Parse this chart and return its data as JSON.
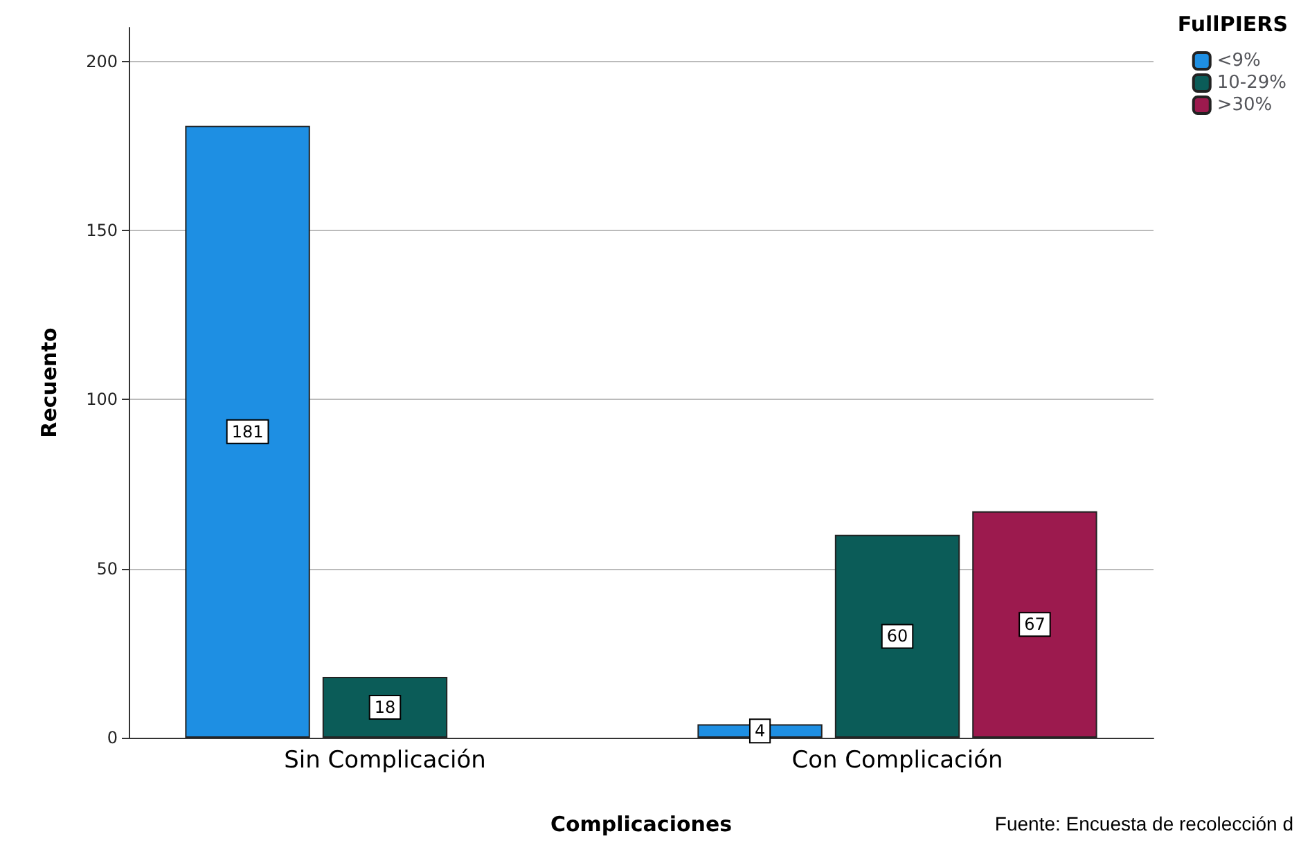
{
  "chart_data": {
    "type": "bar",
    "xlabel": "Complicaciones",
    "ylabel": "Recuento",
    "legend_title": "FullPIERS",
    "categories": [
      "Sin Complicación",
      "Con Complicación"
    ],
    "series": [
      {
        "name": "<9%",
        "color": "#1e8fe3",
        "values": [
          181,
          4
        ]
      },
      {
        "name": "10-29%",
        "color": "#0b5c58",
        "values": [
          18,
          60
        ]
      },
      {
        "name": ">30%",
        "color": "#9c1a4e",
        "values": [
          null,
          67
        ]
      }
    ],
    "ylim": [
      0,
      210
    ],
    "yticks": [
      0,
      50,
      100,
      150,
      200
    ],
    "grid": "y",
    "legend": "top right",
    "data_labels": true,
    "annotations": [
      "Fuente: Encuesta de recolección d"
    ]
  }
}
